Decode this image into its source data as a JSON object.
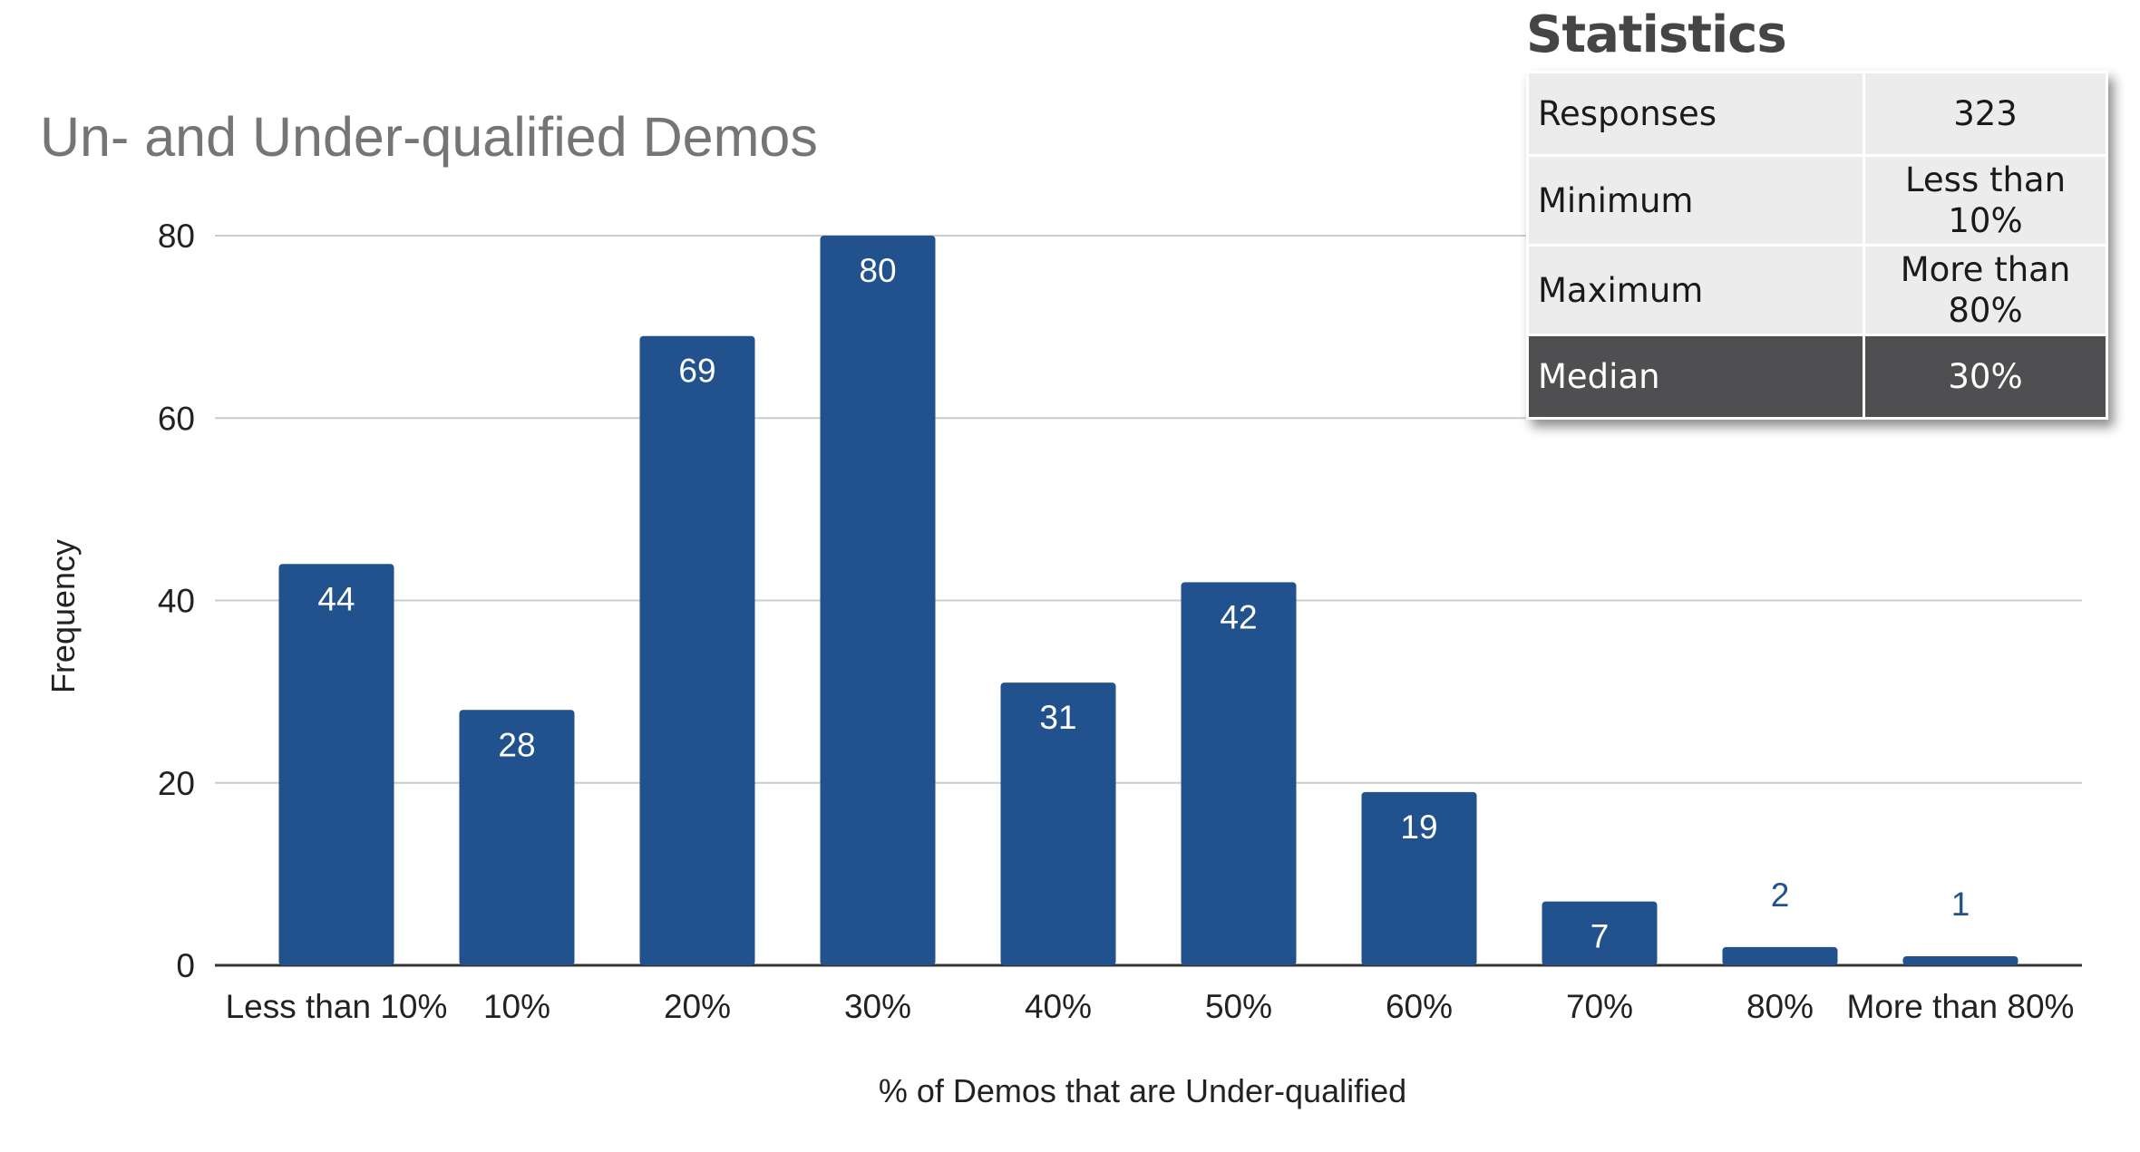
{
  "chart_data": {
    "type": "bar",
    "title": "Un- and Under-qualified Demos",
    "xlabel": "% of Demos that are Under-qualified",
    "ylabel": "Frequency",
    "categories": [
      "Less than 10%",
      "10%",
      "20%",
      "30%",
      "40%",
      "50%",
      "60%",
      "70%",
      "80%",
      "More than 80%"
    ],
    "values": [
      44,
      28,
      69,
      80,
      31,
      42,
      19,
      7,
      2,
      1
    ],
    "ylim": [
      0,
      80
    ],
    "yticks": [
      0,
      20,
      40,
      60,
      80
    ],
    "grid": true,
    "bar_color": "#22528e",
    "data_labels": true
  },
  "statistics": {
    "heading": "Statistics",
    "rows": [
      {
        "label": "Responses",
        "value": "323"
      },
      {
        "label": "Minimum",
        "value": "Less than 10%"
      },
      {
        "label": "Maximum",
        "value": "More than 80%"
      },
      {
        "label": "Median",
        "value": "30%"
      }
    ]
  }
}
